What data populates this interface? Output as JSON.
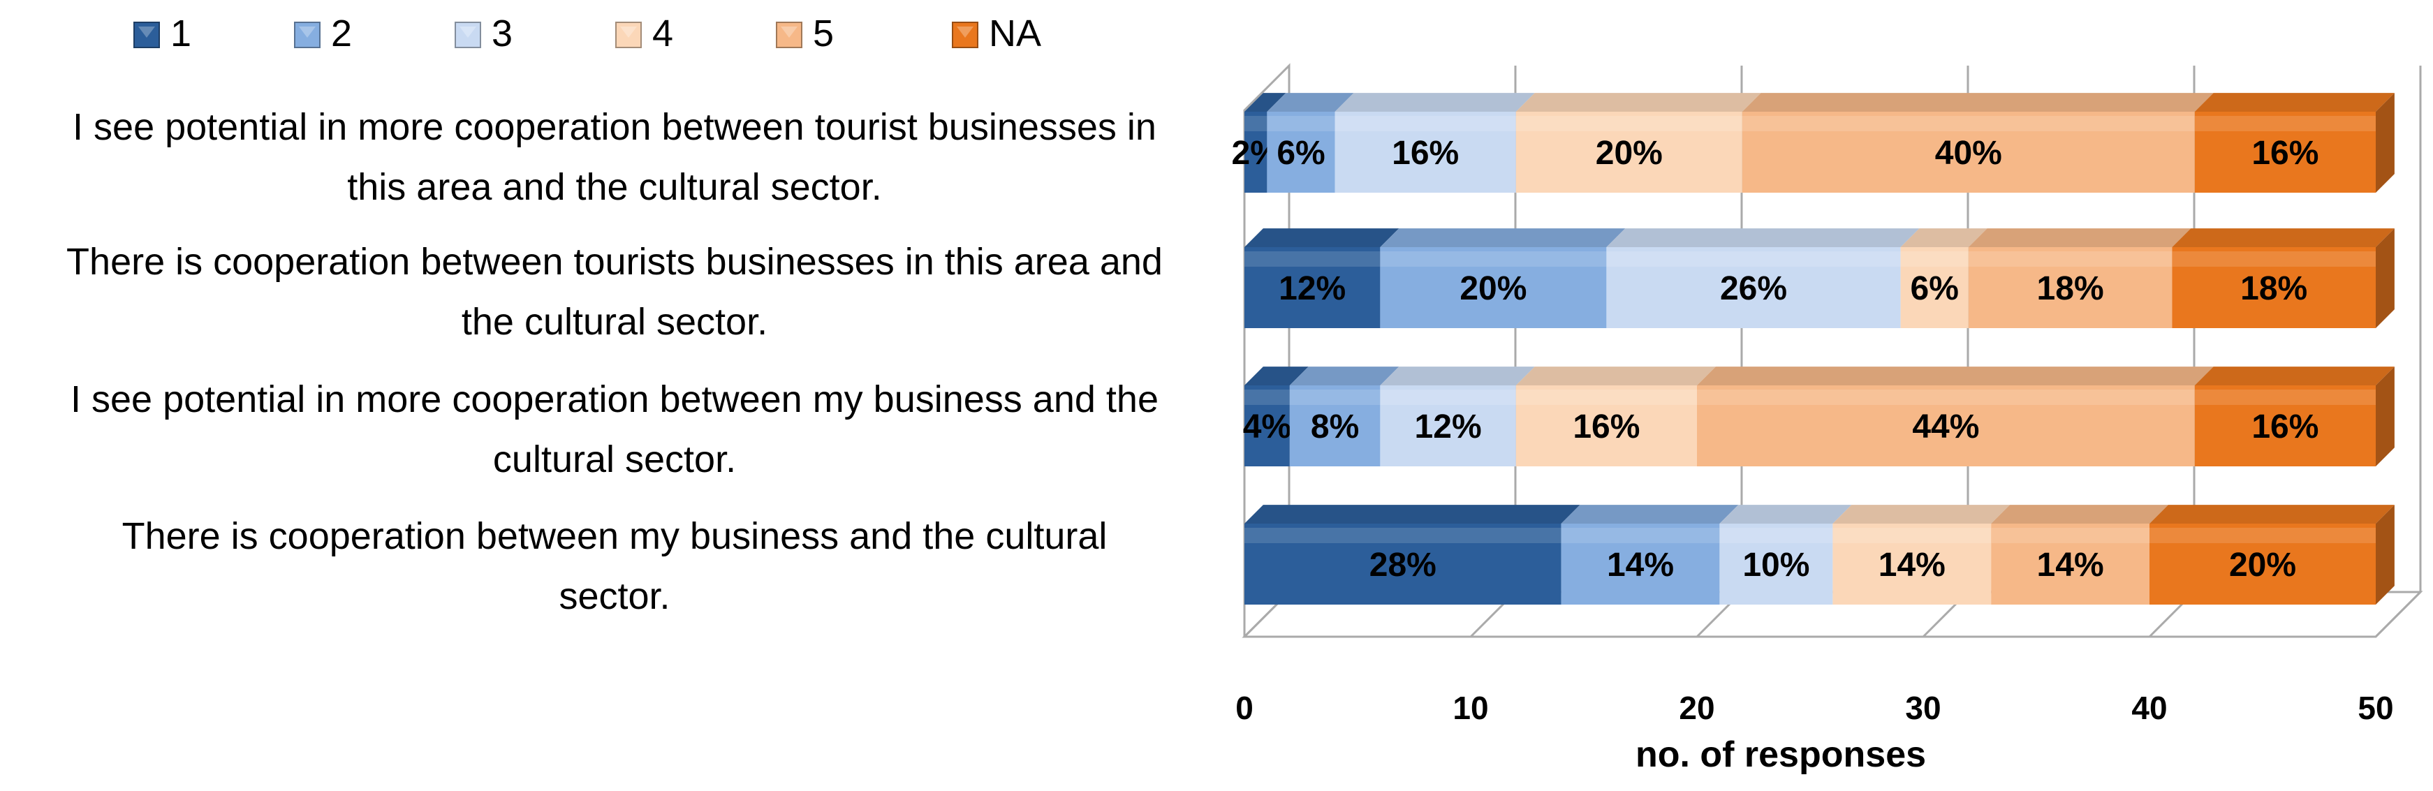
{
  "chart_data": {
    "type": "bar",
    "orientation": "horizontal",
    "stacked": true,
    "three_d": true,
    "categories": [
      "I see potential in more cooperation between tourist businesses in this area and the cultural sector.",
      "There is cooperation between tourists businesses in this area and the cultural sector.",
      "I see potential in more cooperation between my business and the cultural sector.",
      "There is cooperation between my business and the cultural sector."
    ],
    "series": [
      {
        "name": "1",
        "color": "#2c5e9a",
        "values": [
          1,
          6,
          2,
          14
        ],
        "labels": [
          "2%",
          "12%",
          "4%",
          "28%"
        ]
      },
      {
        "name": "2",
        "color": "#86aee0",
        "values": [
          3,
          10,
          4,
          7
        ],
        "labels": [
          "6%",
          "20%",
          "8%",
          "14%"
        ]
      },
      {
        "name": "3",
        "color": "#c9daf2",
        "values": [
          8,
          13,
          6,
          5
        ],
        "labels": [
          "16%",
          "26%",
          "12%",
          "10%"
        ]
      },
      {
        "name": "4",
        "color": "#fbd7b8",
        "values": [
          10,
          3,
          8,
          7
        ],
        "labels": [
          "20%",
          "6%",
          "16%",
          "14%"
        ]
      },
      {
        "name": "5",
        "color": "#f6b888",
        "values": [
          20,
          9,
          22,
          7
        ],
        "labels": [
          "40%",
          "18%",
          "44%",
          "14%"
        ]
      },
      {
        "name": "NA",
        "color": "#e9771e",
        "values": [
          8,
          9,
          8,
          10
        ],
        "labels": [
          "16%",
          "18%",
          "16%",
          "20%"
        ]
      }
    ],
    "xlabel": "no. of responses",
    "ylabel": "",
    "xlim": [
      0,
      50
    ],
    "xticks": [
      "0",
      "10",
      "20",
      "30",
      "40",
      "50"
    ],
    "grid": true,
    "legend_position": "top"
  }
}
